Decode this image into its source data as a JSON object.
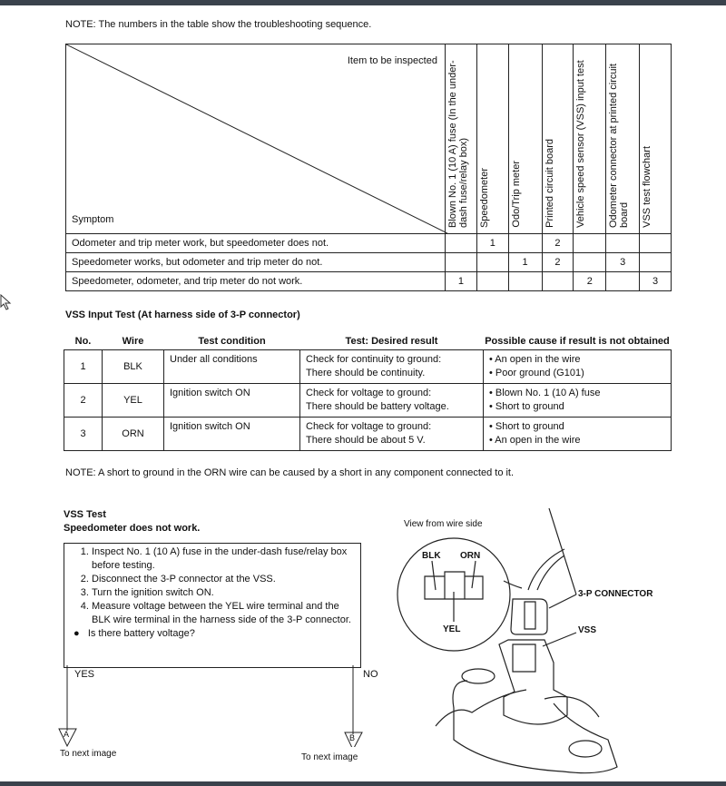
{
  "note_top": "NOTE:  The numbers in the table show the troubleshooting sequence.",
  "matrix": {
    "corner_top": "Item to be inspected",
    "corner_bottom": "Symptom",
    "columns": [
      "Blown No. 1 (10 A) fuse (In the under-dash fuse/relay box)",
      "Speedometer",
      "Odo/Trip meter",
      "Printed circuit board",
      "Vehicle speed sensor (VSS) input test",
      "Odometer connector at printed circuit board",
      "VSS test flowchart"
    ],
    "rows": [
      {
        "symptom": "Odometer and trip meter work, but speedometer does not.",
        "cells": [
          "",
          "1",
          "",
          "2",
          "",
          "",
          ""
        ]
      },
      {
        "symptom": "Speedometer works, but odometer and trip meter do not.",
        "cells": [
          "",
          "",
          "1",
          "2",
          "",
          "3",
          ""
        ]
      },
      {
        "symptom": "Speedometer, odometer, and trip meter do not work.",
        "cells": [
          "1",
          "",
          "",
          "",
          "2",
          "",
          "3"
        ]
      }
    ]
  },
  "vss_input": {
    "title": "VSS Input Test (At harness side of 3-P connector)",
    "headers": [
      "No.",
      "Wire",
      "Test condition",
      "Test: Desired result",
      "Possible cause if result is not obtained"
    ],
    "rows": [
      {
        "no": "1",
        "wire": "BLK",
        "cond": "Under all conditions",
        "result": [
          "Check for continuity to ground:",
          "There should be continuity."
        ],
        "cause": [
          "• An open in the wire",
          "• Poor ground (G101)"
        ]
      },
      {
        "no": "2",
        "wire": "YEL",
        "cond": "Ignition switch ON",
        "result": [
          "Check for voltage to ground:",
          "There should be battery voltage."
        ],
        "cause": [
          "• Blown No. 1 (10 A) fuse",
          "• Short to ground"
        ]
      },
      {
        "no": "3",
        "wire": "ORN",
        "cond": "Ignition switch ON",
        "result": [
          "Check for voltage to ground:",
          "There should be about 5 V."
        ],
        "cause": [
          "• Short to ground",
          "• An open in the wire"
        ]
      }
    ]
  },
  "note_orn": "NOTE:  A short to ground in the ORN wire can be caused by a short in any component connected to it.",
  "vss_test": {
    "title": "VSS Test",
    "subtitle": "Speedometer does not work.",
    "steps": [
      "Inspect No. 1 (10 A) fuse in the under-dash fuse/relay box before testing.",
      "Disconnect the 3-P connector at the VSS.",
      "Turn the ignition switch ON.",
      "Measure voltage between the YEL wire terminal and the BLK wire terminal in the harness side of the 3-P connector."
    ],
    "question": "Is there battery voltage?",
    "yes": "YES",
    "no": "NO",
    "a": "A",
    "b": "B",
    "next_a": "To next image",
    "next_b": "To next image"
  },
  "diagram": {
    "caption": "View from wire side",
    "blk": "BLK",
    "orn": "ORN",
    "yel": "YEL",
    "connector": "3-P CONNECTOR",
    "vss": "VSS"
  }
}
